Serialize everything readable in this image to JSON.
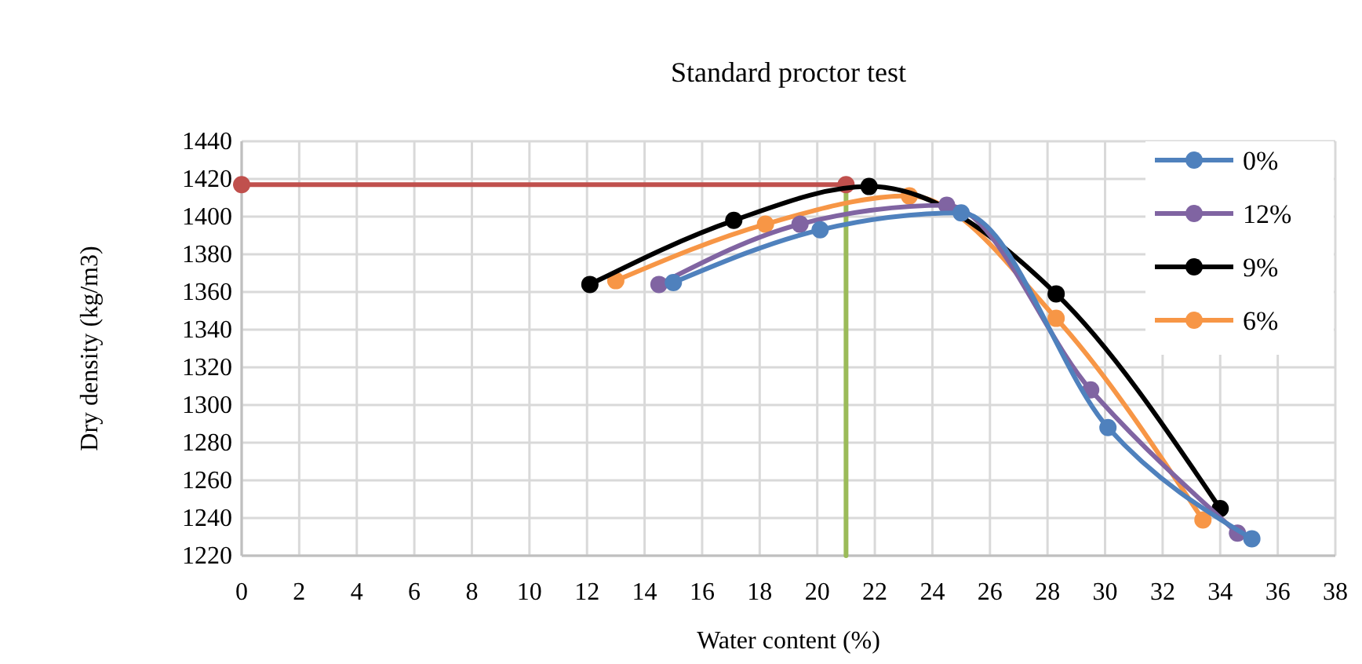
{
  "chart_data": {
    "type": "line",
    "title": "Standard proctor test",
    "xlabel": "Water content (%)",
    "ylabel": "Dry density  (kg/m3)",
    "xlim": [
      0,
      38
    ],
    "xticks": [
      0,
      2,
      4,
      6,
      8,
      10,
      12,
      14,
      16,
      18,
      20,
      22,
      24,
      26,
      28,
      30,
      32,
      34,
      36,
      38
    ],
    "ylim": [
      1220,
      1440
    ],
    "yticks": [
      1220,
      1240,
      1260,
      1280,
      1300,
      1320,
      1340,
      1360,
      1380,
      1400,
      1420,
      1440
    ],
    "grid": true,
    "legend": "top right",
    "marker": "circle",
    "series": [
      {
        "name": "0%",
        "color": "#4f81bd",
        "x": [
          15,
          20.1,
          25,
          30.1,
          35.1
        ],
        "values": [
          1365,
          1393,
          1402,
          1288,
          1229
        ]
      },
      {
        "name": "12%",
        "color": "#8064a2",
        "x": [
          14.5,
          19.4,
          24.5,
          29.5,
          34.6
        ],
        "values": [
          1364,
          1396,
          1406,
          1308,
          1232
        ]
      },
      {
        "name": "9%",
        "color": "#000000",
        "x": [
          12.1,
          17.1,
          21.8,
          28.3,
          34
        ],
        "values": [
          1364,
          1398,
          1416,
          1359,
          1245
        ]
      },
      {
        "name": "6%",
        "color": "#f79646",
        "x": [
          13,
          18.2,
          23.2,
          28.3,
          33.4
        ],
        "values": [
          1366,
          1396,
          1411,
          1346,
          1239
        ]
      },
      {
        "color": "#c0504d",
        "x": [
          0,
          21
        ],
        "values": [
          1417,
          1417
        ]
      },
      {
        "color": "#9bbb59",
        "x": [
          21,
          21
        ],
        "values": [
          1220,
          1417
        ],
        "marker": "none"
      }
    ]
  }
}
